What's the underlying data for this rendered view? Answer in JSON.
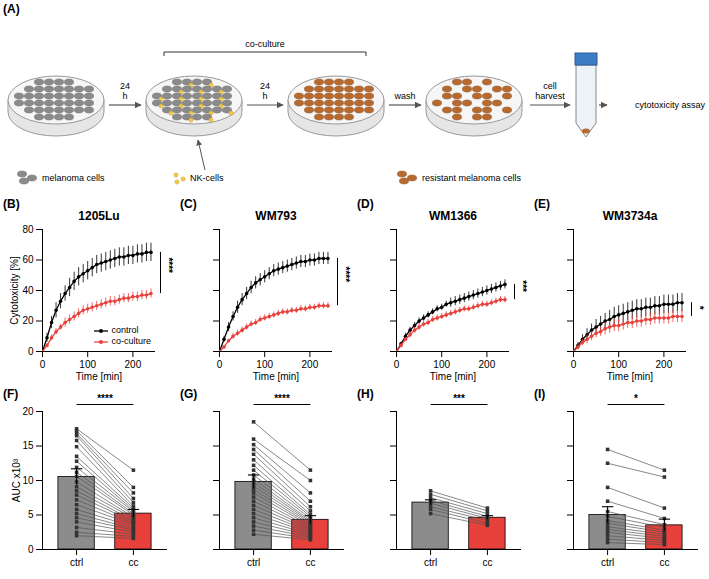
{
  "schematic": {
    "panel": "(A)",
    "span_label": "co-culture",
    "arrow_labels": [
      "24 h",
      "24 h",
      "wash",
      "cell harvest"
    ],
    "endpoint": "cytotoxicity assay",
    "key_labels": [
      "melanoma cells",
      "NK-cells",
      "resistant melanoma cells"
    ]
  },
  "chart_data": [
    {
      "type": "line",
      "panel": "(B)",
      "title": "1205Lu",
      "x": [
        0,
        10,
        20,
        30,
        40,
        50,
        60,
        70,
        80,
        90,
        100,
        110,
        120,
        130,
        140,
        150,
        160,
        170,
        180,
        190,
        200,
        210,
        220,
        230,
        240
      ],
      "series": [
        {
          "name": "control",
          "color": "#000000",
          "marker": "circle",
          "values": [
            0,
            9,
            19,
            27,
            33,
            38,
            42,
            46,
            49,
            51,
            53,
            55,
            57,
            58,
            59,
            60,
            61,
            62,
            62,
            63,
            63,
            64,
            64,
            65,
            65
          ],
          "errors": [
            0,
            3,
            4,
            5,
            5,
            5,
            6,
            6,
            6,
            6,
            6,
            6,
            6,
            6,
            6,
            6,
            6,
            6,
            6,
            6,
            6,
            6,
            6,
            6,
            6
          ]
        },
        {
          "name": "co-culture",
          "color": "#e8413c",
          "marker": "circle",
          "values": [
            0,
            4,
            9,
            13,
            16,
            19,
            21,
            23,
            25,
            27,
            28,
            29,
            30,
            31,
            32,
            33,
            33,
            34,
            35,
            35,
            36,
            36,
            37,
            37,
            38
          ],
          "errors": [
            0,
            1,
            2,
            2,
            2,
            3,
            3,
            3,
            3,
            3,
            3,
            3,
            3,
            3,
            3,
            3,
            3,
            3,
            3,
            3,
            3,
            3,
            3,
            3,
            3
          ]
        }
      ],
      "xlim": [
        0,
        250
      ],
      "xticks": [
        0,
        100,
        200
      ],
      "ylim": [
        0,
        80
      ],
      "yticks": [
        0,
        20,
        40,
        60,
        80
      ],
      "xlabel": "Time [min]",
      "ylabel": "Cytotoxicity [%]",
      "legend": "bottom-right",
      "significance": "****"
    },
    {
      "type": "line",
      "panel": "(C)",
      "title": "WM793",
      "x": [
        0,
        10,
        20,
        30,
        40,
        50,
        60,
        70,
        80,
        90,
        100,
        110,
        120,
        130,
        140,
        150,
        160,
        170,
        180,
        190,
        200,
        210,
        220,
        230,
        240
      ],
      "series": [
        {
          "color": "#000000",
          "marker": "circle",
          "values": [
            0,
            8,
            16,
            23,
            29,
            34,
            38,
            42,
            45,
            47,
            49,
            51,
            53,
            54,
            55,
            56,
            57,
            58,
            59,
            59,
            60,
            60,
            61,
            61,
            61
          ],
          "errors": [
            0,
            2,
            3,
            3,
            4,
            4,
            4,
            4,
            4,
            4,
            4,
            4,
            4,
            4,
            4,
            4,
            4,
            4,
            4,
            4,
            4,
            4,
            4,
            4,
            4
          ]
        },
        {
          "color": "#e8413c",
          "marker": "circle",
          "values": [
            0,
            3,
            7,
            10,
            12,
            14,
            16,
            18,
            19,
            21,
            22,
            23,
            24,
            25,
            26,
            26,
            27,
            27,
            28,
            28,
            29,
            29,
            30,
            30,
            30
          ],
          "errors": [
            0,
            1,
            1,
            2,
            2,
            2,
            2,
            2,
            2,
            2,
            2,
            2,
            2,
            2,
            2,
            2,
            2,
            2,
            2,
            2,
            2,
            2,
            2,
            2,
            2
          ]
        }
      ],
      "xlim": [
        0,
        250
      ],
      "xticks": [
        0,
        100,
        200
      ],
      "ylim": [
        0,
        80
      ],
      "yticks": [
        0,
        20,
        40,
        60,
        80
      ],
      "xlabel": "Time [min]",
      "tick_labels": "x",
      "significance": "****"
    },
    {
      "type": "line",
      "panel": "(D)",
      "title": "WM1366",
      "x": [
        0,
        10,
        20,
        30,
        40,
        50,
        60,
        70,
        80,
        90,
        100,
        110,
        120,
        130,
        140,
        150,
        160,
        170,
        180,
        190,
        200,
        210,
        220,
        230,
        240
      ],
      "series": [
        {
          "color": "#000000",
          "marker": "circle",
          "values": [
            0,
            5,
            10,
            14,
            17,
            20,
            22,
            24,
            26,
            28,
            29,
            31,
            32,
            33,
            34,
            35,
            36,
            37,
            38,
            39,
            40,
            41,
            42,
            43,
            44
          ],
          "errors": [
            0,
            1,
            2,
            2,
            2,
            2,
            2,
            2,
            2,
            2,
            2,
            2,
            3,
            3,
            3,
            3,
            3,
            3,
            3,
            3,
            3,
            3,
            3,
            3,
            3
          ]
        },
        {
          "color": "#e8413c",
          "marker": "circle",
          "values": [
            0,
            4,
            8,
            11,
            14,
            16,
            18,
            19,
            21,
            22,
            23,
            24,
            25,
            26,
            27,
            28,
            28,
            29,
            30,
            31,
            31,
            32,
            33,
            34,
            34
          ],
          "errors": [
            0,
            1,
            1,
            2,
            2,
            2,
            2,
            2,
            2,
            2,
            2,
            2,
            2,
            2,
            2,
            2,
            2,
            2,
            2,
            2,
            2,
            2,
            2,
            2,
            2
          ]
        }
      ],
      "xlim": [
        0,
        250
      ],
      "xticks": [
        0,
        100,
        200
      ],
      "ylim": [
        0,
        80
      ],
      "yticks": [
        0,
        20,
        40,
        60,
        80
      ],
      "xlabel": "Time [min]",
      "tick_labels": "x",
      "significance": "***"
    },
    {
      "type": "line",
      "panel": "(E)",
      "title": "WM3734a",
      "x": [
        0,
        10,
        20,
        30,
        40,
        50,
        60,
        70,
        80,
        90,
        100,
        110,
        120,
        130,
        140,
        150,
        160,
        170,
        180,
        190,
        200,
        210,
        220,
        230,
        240
      ],
      "series": [
        {
          "color": "#000000",
          "marker": "circle",
          "values": [
            0,
            4,
            8,
            11,
            14,
            16,
            18,
            20,
            21,
            23,
            24,
            25,
            26,
            27,
            28,
            28,
            29,
            29,
            30,
            30,
            31,
            31,
            31,
            32,
            32
          ],
          "errors": [
            0,
            2,
            3,
            4,
            4,
            5,
            5,
            5,
            6,
            6,
            6,
            6,
            6,
            6,
            6,
            6,
            6,
            6,
            6,
            6,
            6,
            6,
            6,
            6,
            6
          ]
        },
        {
          "color": "#e8413c",
          "marker": "circle",
          "values": [
            0,
            3,
            6,
            8,
            10,
            12,
            13,
            15,
            16,
            17,
            17,
            18,
            19,
            19,
            20,
            20,
            21,
            21,
            22,
            22,
            22,
            22,
            23,
            23,
            23
          ],
          "errors": [
            0,
            2,
            2,
            3,
            3,
            3,
            3,
            4,
            4,
            4,
            4,
            4,
            4,
            4,
            4,
            4,
            4,
            4,
            4,
            4,
            4,
            4,
            4,
            4,
            4
          ]
        }
      ],
      "xlim": [
        0,
        250
      ],
      "xticks": [
        0,
        100,
        200
      ],
      "ylim": [
        0,
        80
      ],
      "yticks": [
        0,
        20,
        40,
        60,
        80
      ],
      "xlabel": "Time [min]",
      "tick_labels": "x",
      "significance": "*"
    },
    {
      "type": "bar",
      "panel": "(F)",
      "categories": [
        "ctrl",
        "cc"
      ],
      "values": [
        10.5,
        5.2
      ],
      "errors": [
        1.2,
        0.6
      ],
      "colors": [
        "#8c8c8c",
        "#e8413c"
      ],
      "paired_values": [
        [
          17.5,
          17.2,
          16.8,
          16.5,
          15.8,
          14.9,
          13.5,
          12.8,
          11.9,
          11.2,
          10.6,
          9.8,
          9.1,
          8.5,
          7.9,
          7.2,
          6.5,
          5.8,
          5.2,
          4.6,
          4.0,
          3.2,
          2.5,
          2.0
        ],
        [
          11.5,
          9.0,
          8.2,
          7.4,
          6.8,
          6.3,
          6.0,
          5.7,
          5.5,
          5.2,
          5.0,
          4.7,
          4.5,
          4.2,
          4.0,
          3.8,
          3.6,
          3.3,
          3.0,
          2.8,
          2.5,
          2.2,
          1.9,
          1.6
        ]
      ],
      "ylim": [
        0,
        20
      ],
      "yticks": [
        0,
        5,
        10,
        15,
        20
      ],
      "ylabel": "AUC x10³",
      "significance": "****"
    },
    {
      "type": "bar",
      "panel": "(G)",
      "categories": [
        "ctrl",
        "cc"
      ],
      "values": [
        9.8,
        4.3
      ],
      "errors": [
        1.0,
        0.6
      ],
      "colors": [
        "#8c8c8c",
        "#e8413c"
      ],
      "paired_values": [
        [
          18.5,
          16.0,
          15.2,
          14.5,
          13.8,
          13.0,
          12.2,
          11.5,
          10.8,
          10.2,
          9.7,
          9.2,
          8.7,
          8.2,
          7.6,
          7.0,
          6.4,
          5.8,
          5.2,
          4.6,
          4.0,
          3.4,
          2.8,
          2.2
        ],
        [
          11.5,
          10.0,
          8.2,
          7.0,
          6.2,
          5.6,
          5.1,
          4.8,
          4.5,
          4.2,
          4.0,
          3.8,
          3.6,
          3.4,
          3.2,
          3.0,
          2.8,
          2.6,
          2.4,
          2.2,
          2.0,
          1.8,
          1.6,
          1.4
        ]
      ],
      "ylim": [
        0,
        20
      ],
      "yticks": [
        0,
        5,
        10,
        15,
        20
      ],
      "tick_labels": "x",
      "significance": "****"
    },
    {
      "type": "bar",
      "panel": "(H)",
      "categories": [
        "ctrl",
        "cc"
      ],
      "values": [
        6.8,
        4.6
      ],
      "errors": [
        0.4,
        0.3
      ],
      "colors": [
        "#8c8c8c",
        "#e8413c"
      ],
      "paired_values": [
        [
          8.5,
          8.0,
          7.5,
          7.1,
          6.7,
          6.2,
          5.8,
          5.2
        ],
        [
          6.0,
          5.6,
          5.2,
          4.8,
          4.5,
          4.2,
          3.8,
          3.5
        ]
      ],
      "ylim": [
        0,
        20
      ],
      "yticks": [
        0,
        5,
        10,
        15,
        20
      ],
      "tick_labels": "x",
      "significance": "***"
    },
    {
      "type": "bar",
      "panel": "(I)",
      "categories": [
        "ctrl",
        "cc"
      ],
      "values": [
        5.0,
        3.5
      ],
      "errors": [
        1.2,
        0.9
      ],
      "colors": [
        "#8c8c8c",
        "#e8413c"
      ],
      "paired_values": [
        [
          14.5,
          12.5,
          9.0,
          7.0,
          5.5,
          4.8,
          4.2,
          3.8,
          3.3,
          2.9,
          2.5,
          2.0,
          1.5,
          1.0
        ],
        [
          11.5,
          10.5,
          6.0,
          4.5,
          3.6,
          3.2,
          2.8,
          2.5,
          2.2,
          1.9,
          1.6,
          1.3,
          1.0,
          0.7
        ]
      ],
      "ylim": [
        0,
        20
      ],
      "yticks": [
        0,
        5,
        10,
        15,
        20
      ],
      "tick_labels": "x",
      "significance": "*"
    }
  ]
}
